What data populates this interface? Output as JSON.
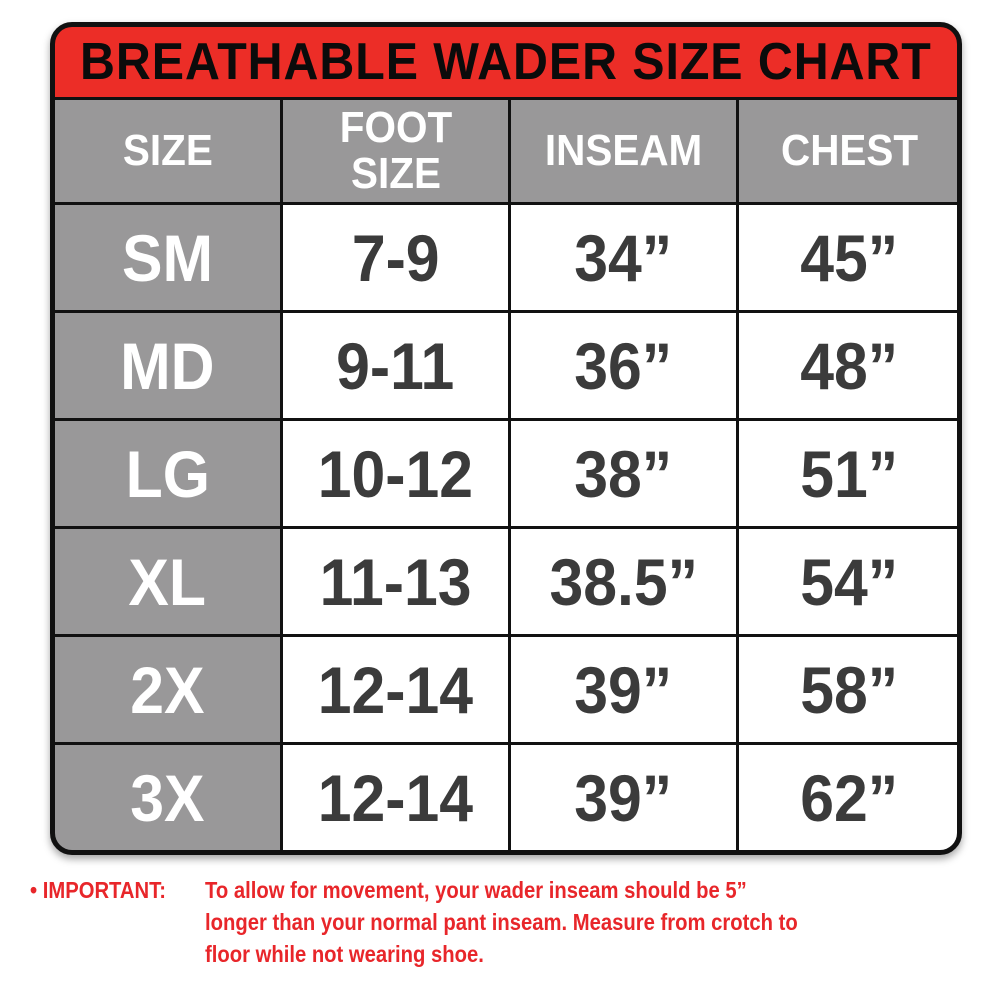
{
  "title": "BREATHABLE WADER SIZE CHART",
  "colors": {
    "title_bg": "#ec2d27",
    "header_bg": "#999899",
    "note_text": "#e8262a",
    "value_text": "#3b3b3b"
  },
  "headers": [
    "SIZE",
    "FOOT SIZE",
    "INSEAM",
    "CHEST"
  ],
  "rows": [
    {
      "size": "SM",
      "foot": "7-9",
      "inseam": "34”",
      "chest": "45”"
    },
    {
      "size": "MD",
      "foot": "9-11",
      "inseam": "36”",
      "chest": "48”"
    },
    {
      "size": "LG",
      "foot": "10-12",
      "inseam": "38”",
      "chest": "51”"
    },
    {
      "size": "XL",
      "foot": "11-13",
      "inseam": "38.5”",
      "chest": "54”"
    },
    {
      "size": "2X",
      "foot": "12-14",
      "inseam": "39”",
      "chest": "58”"
    },
    {
      "size": "3X",
      "foot": "12-14",
      "inseam": "39”",
      "chest": "62”"
    }
  ],
  "note": {
    "bullet": "•",
    "label": "IMPORTANT:",
    "lines": [
      "To allow for movement, your wader inseam should be 5”",
      "longer than your normal pant inseam. Measure from crotch to",
      "floor while not wearing shoe."
    ]
  }
}
